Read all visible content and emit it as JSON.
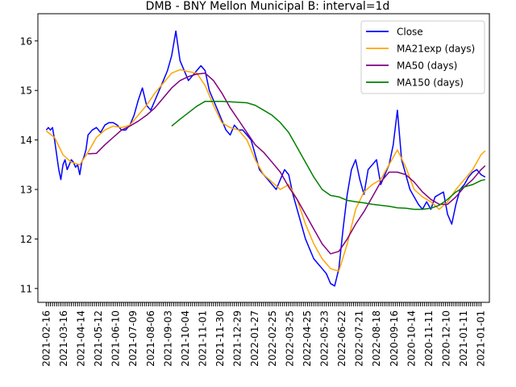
{
  "chart_data": {
    "type": "line",
    "title": "DMB - BNY Mellon Municipal B: interval=1d",
    "xlabel": "",
    "ylabel": "",
    "ylim": [
      10.72,
      16.55
    ],
    "yticks": [
      11,
      12,
      13,
      14,
      15,
      16
    ],
    "xlim": [
      -4,
      212
    ],
    "x_tick_labels": [
      "2021-02-16",
      "2021-03-16",
      "2021-04-14",
      "2021-05-12",
      "2021-06-10",
      "2021-07-09",
      "2021-08-06",
      "2021-09-03",
      "2021-10-04",
      "2021-11-01",
      "2021-11-30",
      "2021-12-29",
      "2022-01-27",
      "2022-02-25",
      "2022-03-25",
      "2022-04-25",
      "2022-05-23",
      "2022-06-22",
      "2022-07-21",
      "2022-08-18",
      "2020-09-16",
      "2020-10-14",
      "2020-11-11",
      "2020-12-10",
      "2021-01-11",
      "2021-01-01"
    ],
    "grid": false,
    "legend": {
      "position": "upper right"
    },
    "series": [
      {
        "name": "Close",
        "color": "#0000ff",
        "x": [
          0,
          1,
          2,
          3,
          4,
          5,
          6,
          7,
          8,
          9,
          10,
          11,
          12,
          13,
          14,
          15,
          16,
          17,
          18,
          19,
          20,
          22,
          24,
          26,
          28,
          30,
          32,
          34,
          36,
          38,
          40,
          42,
          44,
          46,
          48,
          50,
          52,
          54,
          56,
          58,
          60,
          62,
          64,
          66,
          68,
          70,
          72,
          74,
          76,
          78,
          80,
          82,
          84,
          86,
          88,
          90,
          92,
          94,
          96,
          98,
          100,
          102,
          104,
          106,
          108,
          110,
          112,
          114,
          116,
          118,
          120,
          122,
          124,
          126,
          128,
          130,
          132,
          134,
          136,
          138,
          140,
          142,
          144,
          146,
          148,
          150,
          152,
          154,
          156,
          158,
          160,
          162,
          164,
          166,
          168,
          170,
          172,
          174,
          176,
          178,
          180,
          182,
          184,
          186,
          188,
          190,
          192,
          194,
          196,
          198,
          200,
          202,
          204,
          206,
          208,
          210
        ],
        "y": [
          14.2,
          14.25,
          14.2,
          14.25,
          14.0,
          13.7,
          13.4,
          13.2,
          13.5,
          13.6,
          13.4,
          13.5,
          13.6,
          13.55,
          13.45,
          13.5,
          13.3,
          13.55,
          13.65,
          13.8,
          14.1,
          14.2,
          14.25,
          14.15,
          14.3,
          14.35,
          14.35,
          14.3,
          14.2,
          14.2,
          14.3,
          14.5,
          14.8,
          15.05,
          14.7,
          14.6,
          14.8,
          15.0,
          15.2,
          15.4,
          15.7,
          16.2,
          15.6,
          15.4,
          15.2,
          15.3,
          15.4,
          15.5,
          15.4,
          15.0,
          14.8,
          14.6,
          14.4,
          14.2,
          14.1,
          14.3,
          14.2,
          14.2,
          14.1,
          14.0,
          13.7,
          13.4,
          13.3,
          13.2,
          13.1,
          13.0,
          13.2,
          13.4,
          13.3,
          12.9,
          12.6,
          12.3,
          12.0,
          11.8,
          11.6,
          11.5,
          11.4,
          11.3,
          11.1,
          11.05,
          11.4,
          12.2,
          12.9,
          13.4,
          13.6,
          13.2,
          12.9,
          13.4,
          13.5,
          13.6,
          13.1,
          13.3,
          13.5,
          13.9,
          14.6,
          13.6,
          13.3,
          13.0,
          12.85,
          12.7,
          12.6,
          12.75,
          12.6,
          12.85,
          12.9,
          12.95,
          12.5,
          12.3,
          12.7,
          13.0,
          13.1,
          13.25,
          13.35,
          13.4,
          13.3,
          13.25
        ],
        "x2": [],
        "y2": []
      },
      {
        "name": "MA21exp (days)",
        "color": "#ffa500",
        "x": [
          0,
          4,
          8,
          12,
          16,
          20,
          24,
          28,
          32,
          36,
          40,
          44,
          48,
          52,
          56,
          60,
          64,
          68,
          72,
          76,
          80,
          84,
          88,
          92,
          96,
          100,
          104,
          108,
          112,
          116,
          120,
          124,
          128,
          132,
          136,
          140,
          144,
          148,
          152,
          156,
          160,
          164,
          168,
          172,
          176,
          180,
          184,
          188,
          192,
          196,
          200,
          204,
          208,
          210
        ],
        "y": [
          14.18,
          14.05,
          13.7,
          13.55,
          13.5,
          13.75,
          14.05,
          14.2,
          14.28,
          14.25,
          14.3,
          14.5,
          14.7,
          14.95,
          15.15,
          15.35,
          15.42,
          15.38,
          15.35,
          15.1,
          14.7,
          14.35,
          14.25,
          14.2,
          14.0,
          13.6,
          13.3,
          13.15,
          13.0,
          13.1,
          12.8,
          12.3,
          11.9,
          11.6,
          11.4,
          11.35,
          11.9,
          12.6,
          12.95,
          13.1,
          13.2,
          13.5,
          13.8,
          13.45,
          13.0,
          12.85,
          12.75,
          12.6,
          12.75,
          13.0,
          13.2,
          13.4,
          13.7,
          13.78
        ]
      },
      {
        "name": "MA50 (days)",
        "color": "#800080",
        "x": [
          20,
          24,
          28,
          32,
          36,
          40,
          44,
          48,
          52,
          56,
          60,
          64,
          68,
          72,
          76,
          80,
          84,
          88,
          92,
          96,
          100,
          104,
          108,
          112,
          116,
          120,
          124,
          128,
          132,
          136,
          140,
          144,
          148,
          152,
          156,
          160,
          164,
          168,
          172,
          176,
          180,
          184,
          188,
          192,
          196,
          200,
          204,
          208,
          210
        ],
        "y": [
          13.72,
          13.73,
          13.9,
          14.05,
          14.2,
          14.28,
          14.38,
          14.5,
          14.65,
          14.85,
          15.05,
          15.2,
          15.28,
          15.33,
          15.35,
          15.2,
          14.95,
          14.65,
          14.4,
          14.15,
          13.9,
          13.75,
          13.55,
          13.35,
          13.05,
          12.8,
          12.5,
          12.2,
          11.9,
          11.7,
          11.75,
          12.0,
          12.3,
          12.55,
          12.85,
          13.15,
          13.35,
          13.35,
          13.3,
          13.15,
          12.95,
          12.8,
          12.7,
          12.7,
          12.85,
          13.05,
          13.2,
          13.4,
          13.48
        ]
      },
      {
        "name": "MA150 (days)",
        "color": "#008000",
        "x": [
          60,
          64,
          68,
          72,
          76,
          80,
          84,
          88,
          92,
          96,
          100,
          104,
          108,
          112,
          116,
          120,
          124,
          128,
          132,
          136,
          140,
          144,
          148,
          152,
          156,
          160,
          164,
          168,
          172,
          176,
          180,
          184,
          188,
          192,
          196,
          200,
          204,
          208,
          210
        ],
        "y": [
          14.28,
          14.42,
          14.55,
          14.68,
          14.78,
          14.78,
          14.78,
          14.77,
          14.76,
          14.75,
          14.7,
          14.6,
          14.5,
          14.35,
          14.15,
          13.85,
          13.55,
          13.25,
          13.0,
          12.88,
          12.85,
          12.78,
          12.75,
          12.73,
          12.7,
          12.68,
          12.66,
          12.63,
          12.62,
          12.6,
          12.6,
          12.62,
          12.68,
          12.8,
          12.95,
          13.05,
          13.1,
          13.18,
          13.2
        ]
      }
    ]
  }
}
